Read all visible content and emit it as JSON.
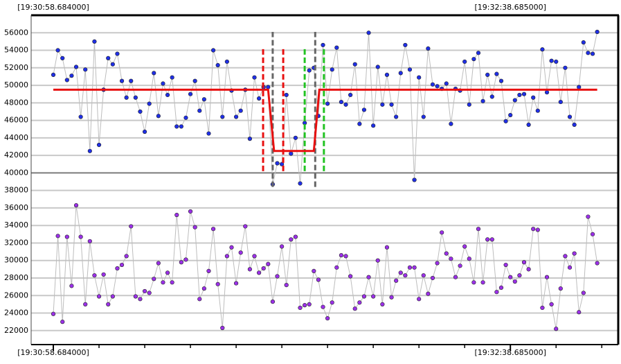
{
  "chart_data": {
    "type": "line",
    "ylim": [
      20400,
      58000
    ],
    "yticks": [
      22000,
      24000,
      26000,
      28000,
      30000,
      32000,
      34000,
      36000,
      38000,
      40000,
      42000,
      44000,
      46000,
      48000,
      50000,
      52000,
      54000,
      56000
    ],
    "xlim": [
      -4.85,
      123.6
    ],
    "xticks": [
      {
        "value": 0,
        "label": "[19:30:58.684000]"
      },
      {
        "value": 100,
        "label": "[19:32:38.685000]"
      }
    ],
    "xminor_ticks": [
      10,
      20,
      30,
      40,
      50,
      60,
      70,
      80,
      90,
      110,
      120
    ],
    "grid": true,
    "divider": 40000,
    "line_color": "#bdbdbd",
    "x": [
      0,
      1,
      2,
      3,
      4,
      5,
      6,
      7,
      8,
      9,
      10,
      11,
      12,
      13,
      14,
      15,
      16,
      17,
      18,
      19,
      20,
      21,
      22,
      23,
      24,
      25,
      26,
      27,
      28,
      29,
      30,
      31,
      32,
      33,
      34,
      35,
      36,
      37,
      38,
      39,
      40,
      41,
      42,
      43,
      44,
      45,
      46,
      47,
      48,
      49,
      50,
      51,
      52,
      53,
      54,
      55,
      56,
      57,
      58,
      59,
      60,
      61,
      62,
      63,
      64,
      65,
      66,
      67,
      68,
      69,
      70,
      71,
      72,
      73,
      74,
      75,
      76,
      77,
      78,
      79,
      80,
      81,
      82,
      83,
      84,
      85,
      86,
      87,
      88,
      89,
      90,
      91,
      92,
      93,
      94,
      95,
      96,
      97,
      98,
      99,
      100,
      101,
      102,
      103,
      104,
      105,
      106,
      107,
      108,
      109,
      110,
      111,
      112,
      113,
      114,
      115,
      116,
      117,
      118,
      119
    ],
    "series": [
      {
        "color": "#1f2fe6",
        "values": [
          51200,
          54000,
          53100,
          50600,
          51100,
          52100,
          46400,
          51800,
          42500,
          55000,
          43200,
          49500,
          53100,
          52400,
          53600,
          50500,
          48600,
          50500,
          48600,
          47000,
          44700,
          47900,
          51400,
          46500,
          50200,
          48900,
          50900,
          45300,
          45300,
          46300,
          49000,
          50500,
          47100,
          48400,
          44500,
          54000,
          52300,
          46400,
          52700,
          49400,
          46400,
          47100,
          49500,
          43900,
          50900,
          48500,
          49800,
          49800,
          38700,
          41100,
          41000,
          48900,
          42200,
          44000,
          38800,
          45700,
          51700,
          52000,
          46500,
          54600,
          47900,
          51800,
          54300,
          48100,
          47800,
          48900,
          52400,
          45600,
          47200,
          56000,
          45400,
          52100,
          47800,
          51200,
          47800,
          46400,
          51400,
          54600,
          51800,
          39200,
          50900,
          46400,
          54200,
          50100,
          49900,
          49600,
          50200,
          45600,
          49600,
          49400,
          52700,
          47800,
          53000,
          53700,
          48200,
          51200,
          48700,
          51300,
          50500,
          45900,
          46600,
          48300,
          48900,
          49000,
          45500,
          48600,
          47100,
          54100,
          49200,
          52800,
          52700,
          48100,
          52000,
          46400,
          45500,
          49800,
          54900,
          53700,
          53600,
          56100
        ]
      },
      {
        "color": "#9b30e8",
        "values": [
          23900,
          32800,
          23000,
          32700,
          27100,
          36300,
          32700,
          25000,
          32200,
          28300,
          25900,
          28400,
          25000,
          25900,
          29100,
          29500,
          30500,
          33900,
          25900,
          25600,
          26500,
          26300,
          27900,
          29700,
          27500,
          28600,
          27500,
          35200,
          29800,
          30100,
          35600,
          33800,
          25600,
          26800,
          28800,
          33600,
          27300,
          22300,
          30500,
          31500,
          27400,
          30900,
          33900,
          29000,
          30500,
          28600,
          29100,
          29600,
          25300,
          28200,
          31600,
          27200,
          32400,
          32700,
          24600,
          24900,
          25000,
          28800,
          27800,
          24700,
          23400,
          25200,
          29200,
          30600,
          30500,
          28200,
          24500,
          25200,
          25900,
          28100,
          25900,
          30000,
          25000,
          31500,
          25800,
          27700,
          28600,
          28300,
          29200,
          29200,
          25600,
          28300,
          26200,
          28000,
          29700,
          33200,
          30800,
          30200,
          28100,
          29400,
          31600,
          30200,
          27500,
          33600,
          27500,
          32400,
          32400,
          26400,
          26900,
          29500,
          28100,
          27600,
          28300,
          29800,
          29000,
          33600,
          33500,
          24600,
          28100,
          25000,
          22200,
          26800,
          30500,
          29200,
          30800,
          24100,
          26300,
          35000,
          33000,
          29700
        ]
      }
    ],
    "fit_line": {
      "color": "#e81010",
      "x": [
        0,
        47,
        48.3,
        57,
        58.2,
        119
      ],
      "y": [
        49500,
        49500,
        42500,
        42500,
        49500,
        49500
      ]
    },
    "vlines": [
      {
        "x": 45.9,
        "ylim": [
          40200,
          54200
        ],
        "color": "#e81010"
      },
      {
        "x": 50.3,
        "ylim": [
          40200,
          54200
        ],
        "color": "#e81010"
      },
      {
        "x": 55.0,
        "ylim": [
          40200,
          54200
        ],
        "color": "#22c322"
      },
      {
        "x": 59.2,
        "ylim": [
          40200,
          54200
        ],
        "color": "#22c322"
      },
      {
        "x": 48.0,
        "ylim": [
          38400,
          56100
        ],
        "color": "#666666"
      },
      {
        "x": 57.3,
        "ylim": [
          38400,
          56100
        ],
        "color": "#666666"
      }
    ]
  }
}
